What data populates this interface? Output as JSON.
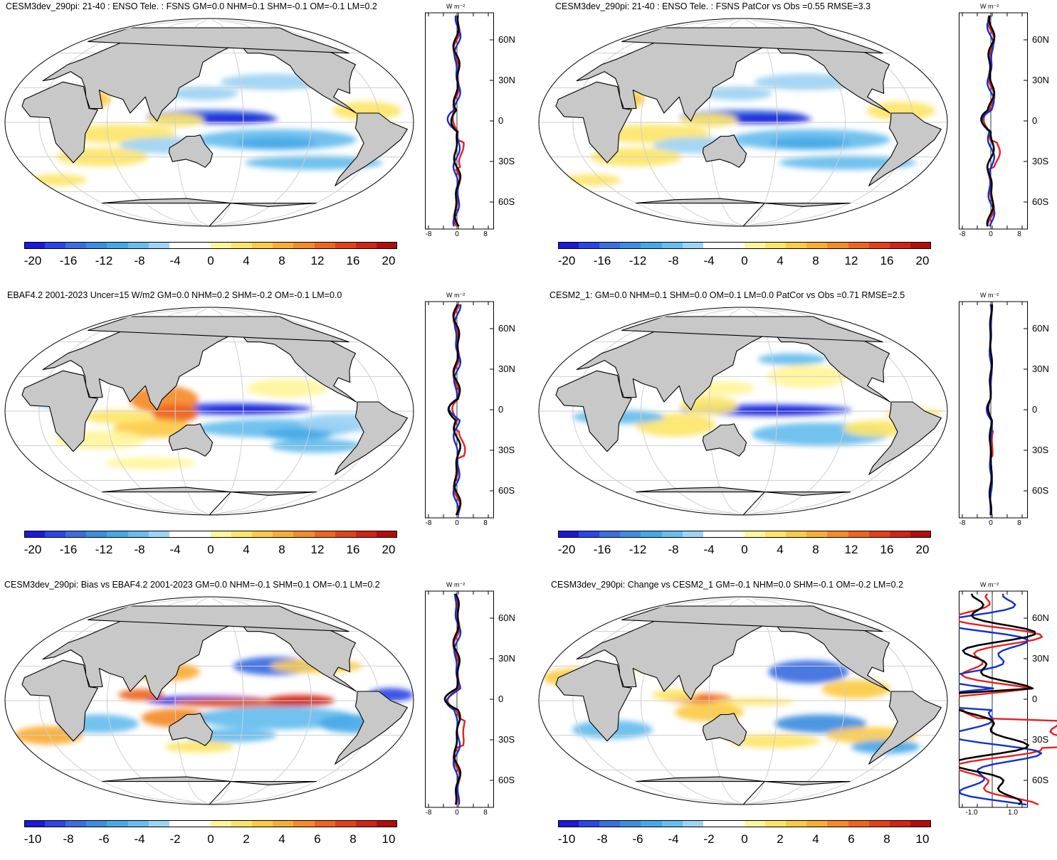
{
  "figure": {
    "panels": [
      {
        "id": "p1",
        "title": "CESM3dev_290pi: 21-40 : ENSO Tele. : FSNS GM=0.0 NHM=0.1 SHM=-0.1 OM=-0.1 LM=0.2",
        "colorbar": [
          "-20",
          "-16",
          "-12",
          "-8",
          "-4",
          "0",
          "4",
          "8",
          "12",
          "16",
          "20"
        ],
        "zonal_unit": "W m⁻²",
        "zonal_xticks": [
          "-8",
          "0",
          "8"
        ],
        "lat_labels": [
          "60N",
          "30N",
          "0",
          "30S",
          "60S"
        ]
      },
      {
        "id": "p2",
        "title": "CESM3dev_290pi: 21-40 : ENSO Tele. : FSNS PatCor vs Obs =0.55 RMSE=3.3",
        "colorbar": [
          "-20",
          "-16",
          "-12",
          "-8",
          "-4",
          "0",
          "4",
          "8",
          "12",
          "16",
          "20"
        ],
        "zonal_unit": "W m⁻²",
        "zonal_xticks": [
          "-8",
          "0",
          "8"
        ],
        "lat_labels": [
          "60N",
          "30N",
          "0",
          "30S",
          "60S"
        ]
      },
      {
        "id": "p3",
        "title": "EBAF4.2 2001-2023 Uncer=15 W/m2 GM=0.0 NHM=0.2 SHM=-0.2 OM=-0.1 LM=0.0",
        "colorbar": [
          "-20",
          "-16",
          "-12",
          "-8",
          "-4",
          "0",
          "4",
          "8",
          "12",
          "16",
          "20"
        ],
        "zonal_unit": "W m⁻²",
        "zonal_xticks": [
          "-8",
          "0",
          "8"
        ],
        "lat_labels": [
          "60N",
          "30N",
          "0",
          "30S",
          "60S"
        ]
      },
      {
        "id": "p4",
        "title": "CESM2_1: GM=0.0 NHM=0.1 SHM=0.0 OM=0.1 LM=0.0 PatCor vs Obs =0.71 RMSE=2.5",
        "colorbar": [
          "-20",
          "-16",
          "-12",
          "-8",
          "-4",
          "0",
          "4",
          "8",
          "12",
          "16",
          "20"
        ],
        "zonal_unit": "W m⁻²",
        "zonal_xticks": [
          "-8",
          "0",
          "8"
        ],
        "lat_labels": [
          "60N",
          "30N",
          "0",
          "30S",
          "60S"
        ]
      },
      {
        "id": "p5",
        "title": "CESM3dev_290pi: Bias vs EBAF4.2 2001-2023 GM=0.0 NHM=-0.1 SHM=0.1 OM=-0.1 LM=0.2",
        "colorbar": [
          "-10",
          "-8",
          "-6",
          "-4",
          "-2",
          "0",
          "2",
          "4",
          "6",
          "8",
          "10"
        ],
        "zonal_unit": "W m⁻²",
        "zonal_xticks": [
          "-8",
          "0",
          "8"
        ],
        "lat_labels": [
          "60N",
          "30N",
          "0",
          "30S",
          "60S"
        ]
      },
      {
        "id": "p6",
        "title": "CESM3dev_290pi: Change vs CESM2_1 GM=-0.1 NHM=0.0 SHM=-0.1 OM=-0.2 LM=0.2",
        "colorbar": [
          "-10",
          "-8",
          "-6",
          "-4",
          "-2",
          "0",
          "2",
          "4",
          "6",
          "8",
          "10"
        ],
        "zonal_unit": "W m⁻²",
        "zonal_xticks": [
          "-1.0",
          "1.0"
        ],
        "lat_labels": [
          "60N",
          "30N",
          "0",
          "30S",
          "60S"
        ]
      }
    ],
    "palette": [
      "#1a1ad8",
      "#2b45e8",
      "#3b6ee0",
      "#3d8ee0",
      "#47a8e8",
      "#66bdee",
      "#9dd3f4",
      "#ffffff",
      "#ffffff",
      "#fff59a",
      "#fde568",
      "#fccb45",
      "#f9ad35",
      "#f58a28",
      "#ef6420",
      "#e3411a",
      "#d12414",
      "#b30c0c"
    ],
    "colors": {
      "land": "#c8c8c8",
      "grid": "#cfcfcf",
      "coast": "#000000"
    },
    "line_colors": {
      "model": "#e82020",
      "obs": "#1030d0",
      "ref": "#000000"
    }
  }
}
